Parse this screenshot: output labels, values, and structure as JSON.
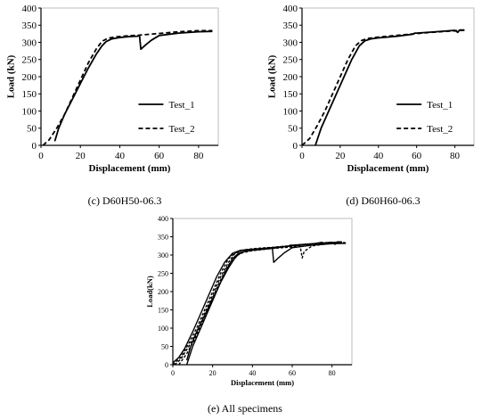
{
  "captions": {
    "c": "(c) D60H50-06.3",
    "d": "(d) D60H60-06.3",
    "e": "(e) All specimens"
  },
  "chart_data": [
    {
      "id": "c",
      "type": "line",
      "title": "",
      "xlabel": "Displacement (mm)",
      "ylabel": "Load (kN)",
      "xlim": [
        0,
        90
      ],
      "ylim": [
        0,
        400
      ],
      "xticks": [
        "0",
        "20",
        "40",
        "60",
        "80"
      ],
      "yticks": [
        "0",
        "50",
        "100",
        "150",
        "200",
        "250",
        "300",
        "350",
        "400"
      ],
      "grid": false,
      "legend": "bottom-right",
      "series": [
        {
          "name": "Test_1",
          "style": "solid",
          "x": [
            7,
            9,
            12,
            16,
            20,
            24,
            28,
            31,
            33,
            36,
            40,
            45,
            49,
            50,
            50.7,
            53,
            56,
            60,
            70,
            80,
            87
          ],
          "y": [
            12,
            50,
            90,
            135,
            180,
            225,
            265,
            290,
            302,
            310,
            314,
            317,
            318,
            320,
            280,
            292,
            306,
            320,
            327,
            331,
            332
          ]
        },
        {
          "name": "Test_2",
          "style": "dashed",
          "x": [
            1,
            4,
            8,
            12,
            16,
            20,
            24,
            28,
            31,
            34,
            38,
            44,
            50,
            60,
            70,
            80,
            87
          ],
          "y": [
            0,
            15,
            50,
            90,
            140,
            190,
            240,
            280,
            303,
            312,
            316,
            319,
            321,
            326,
            331,
            334,
            334
          ]
        }
      ]
    },
    {
      "id": "d",
      "type": "line",
      "title": "",
      "xlabel": "Displacement (mm)",
      "ylabel": "Load (kN)",
      "xlim": [
        0,
        90
      ],
      "ylim": [
        0,
        400
      ],
      "xticks": [
        "0",
        "20",
        "40",
        "60",
        "80"
      ],
      "yticks": [
        "0",
        "50",
        "100",
        "150",
        "200",
        "250",
        "300",
        "350",
        "400"
      ],
      "grid": false,
      "legend": "bottom-right",
      "series": [
        {
          "name": "Test_1",
          "style": "solid",
          "x": [
            7,
            10,
            14,
            18,
            22,
            26,
            30,
            33,
            36,
            40,
            50,
            58,
            59,
            60,
            70,
            80,
            81.5,
            82.5,
            85
          ],
          "y": [
            0,
            50,
            100,
            150,
            200,
            250,
            290,
            305,
            310,
            313,
            318,
            324,
            327,
            327,
            331,
            335,
            329,
            336,
            336
          ]
        },
        {
          "name": "Test_2",
          "style": "dashed",
          "x": [
            0,
            4,
            8,
            12,
            16,
            20,
            24,
            28,
            31,
            34,
            38,
            45,
            55,
            65,
            75,
            85
          ],
          "y": [
            0,
            20,
            58,
            100,
            150,
            200,
            250,
            290,
            305,
            311,
            314,
            318,
            323,
            328,
            332,
            335
          ]
        }
      ]
    },
    {
      "id": "e",
      "type": "line",
      "title": "",
      "xlabel": "Displacement (mm)",
      "ylabel": "Load(kN)",
      "xlim": [
        0,
        90
      ],
      "ylim": [
        0,
        400
      ],
      "xticks": [
        "0",
        "20",
        "40",
        "60",
        "80"
      ],
      "yticks": [
        "0",
        "50",
        "100",
        "150",
        "200",
        "250",
        "300",
        "350",
        "400"
      ],
      "grid": false,
      "legend": "none",
      "series": [
        {
          "style": "solid",
          "x": [
            7,
            9,
            12,
            16,
            20,
            24,
            28,
            31,
            33,
            36,
            40,
            45,
            49,
            50,
            50.7,
            53,
            56,
            60,
            70,
            80,
            87
          ],
          "y": [
            12,
            50,
            90,
            135,
            180,
            225,
            265,
            290,
            302,
            310,
            314,
            317,
            318,
            320,
            280,
            292,
            306,
            320,
            327,
            331,
            332
          ]
        },
        {
          "style": "dashed",
          "x": [
            1,
            4,
            8,
            12,
            16,
            20,
            24,
            28,
            31,
            34,
            38,
            44,
            50,
            60,
            70,
            80,
            87
          ],
          "y": [
            0,
            15,
            50,
            90,
            140,
            190,
            240,
            280,
            303,
            312,
            316,
            319,
            321,
            326,
            331,
            334,
            334
          ]
        },
        {
          "style": "solid",
          "x": [
            7,
            10,
            14,
            18,
            22,
            26,
            30,
            33,
            36,
            40,
            50,
            58,
            59,
            60,
            70,
            80,
            81.5,
            82.5,
            85
          ],
          "y": [
            0,
            50,
            100,
            150,
            200,
            250,
            290,
            305,
            310,
            313,
            318,
            324,
            327,
            327,
            331,
            335,
            329,
            336,
            336
          ]
        },
        {
          "style": "dashed",
          "x": [
            0,
            4,
            8,
            12,
            16,
            20,
            24,
            28,
            31,
            34,
            38,
            45,
            55,
            65,
            75,
            85
          ],
          "y": [
            0,
            20,
            58,
            100,
            150,
            200,
            250,
            290,
            305,
            311,
            314,
            318,
            323,
            328,
            332,
            335
          ]
        },
        {
          "style": "solid",
          "x": [
            0,
            3,
            6,
            10,
            14,
            18,
            22,
            26,
            30,
            34,
            40,
            50,
            60,
            70,
            75,
            76,
            77,
            85
          ],
          "y": [
            5,
            20,
            45,
            90,
            140,
            190,
            240,
            280,
            305,
            313,
            316,
            320,
            325,
            330,
            335,
            330,
            334,
            335
          ]
        },
        {
          "style": "dashed",
          "x": [
            3,
            7,
            11,
            15,
            19,
            23,
            27,
            31,
            35,
            40,
            50,
            60,
            64,
            65,
            66,
            70,
            80,
            85
          ],
          "y": [
            0,
            30,
            70,
            120,
            170,
            220,
            265,
            295,
            306,
            312,
            318,
            322,
            325,
            292,
            310,
            325,
            333,
            334
          ]
        }
      ]
    }
  ]
}
